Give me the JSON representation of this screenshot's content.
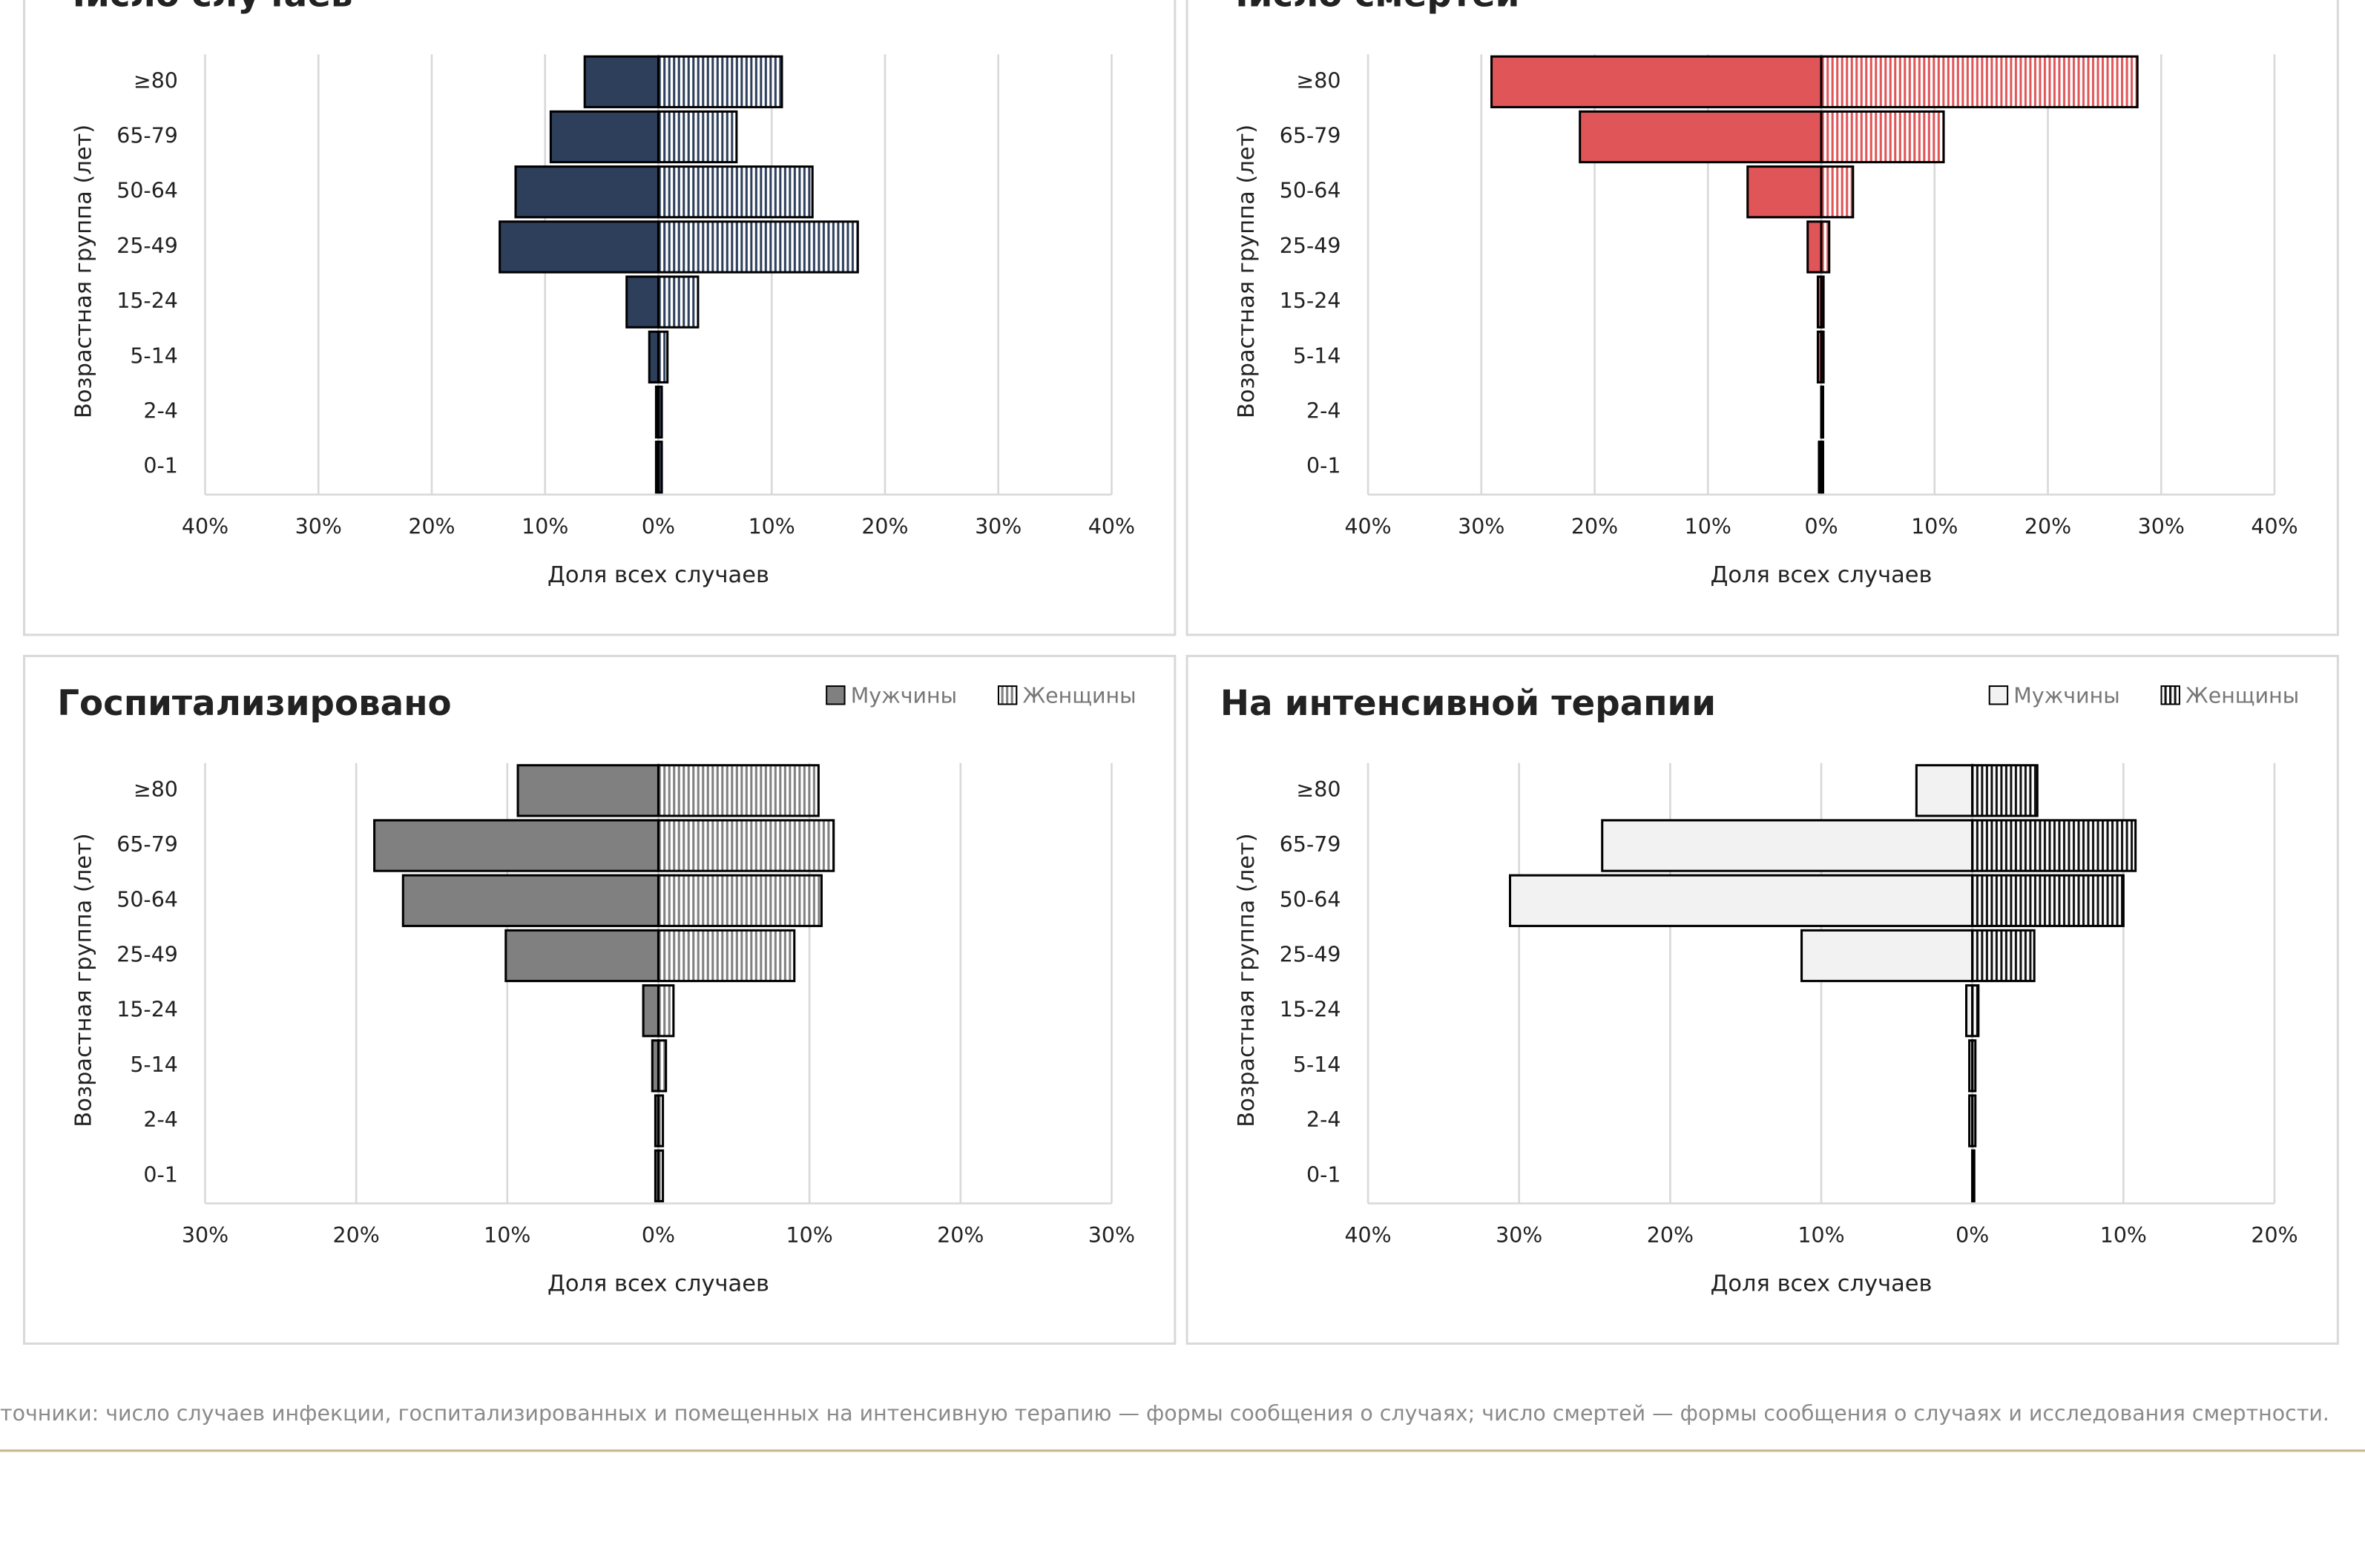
{
  "chart_data": [
    {
      "type": "bar",
      "orientation": "horizontal",
      "layout": "pyramid",
      "title": "Число случаев",
      "x_label": "Доля всех случаев",
      "y_label": "Возрастная группа (лет)",
      "categories": [
        "≥80",
        "65-79",
        "50-64",
        "25-49",
        "15-24",
        "5-14",
        "2-4",
        "0-1"
      ],
      "series": [
        {
          "color": "#2e3f5c",
          "pattern": "solid",
          "values": [
            -6.5,
            -9.5,
            -12.6,
            -14,
            -2.8,
            -0.8,
            -0.2,
            -0.2
          ]
        },
        {
          "color": "#2e3f5c",
          "pattern": "vertical-lines",
          "values": [
            10.9,
            6.9,
            13.6,
            17.6,
            3.5,
            0.8,
            0.3,
            0.3
          ]
        }
      ],
      "xlim": [
        -40,
        40
      ],
      "xticks": [
        {
          "value": -40,
          "label": "40%"
        },
        {
          "value": -30,
          "label": "30%"
        },
        {
          "value": -20,
          "label": "20%"
        },
        {
          "value": -10,
          "label": "10%"
        },
        {
          "value": 0,
          "label": "0%"
        },
        {
          "value": 10,
          "label": "10%"
        },
        {
          "value": 20,
          "label": "20%"
        },
        {
          "value": 30,
          "label": "30%"
        },
        {
          "value": 40,
          "label": "40%"
        }
      ],
      "grid": true,
      "legend": "none"
    },
    {
      "type": "bar",
      "orientation": "horizontal",
      "layout": "pyramid",
      "title": "Число смертей",
      "x_label": "Доля всех случаев",
      "y_label": "Возрастная группа (лет)",
      "categories": [
        "≥80",
        "65-79",
        "50-64",
        "25-49",
        "15-24",
        "5-14",
        "2-4",
        "0-1"
      ],
      "series": [
        {
          "color": "#e05558",
          "pattern": "solid",
          "values": [
            -29.1,
            -21.3,
            -6.5,
            -1.2,
            -0.3,
            -0.3,
            0,
            -0.2
          ]
        },
        {
          "color": "#e05558",
          "pattern": "vertical-lines",
          "values": [
            27.9,
            10.8,
            2.8,
            0.7,
            0.2,
            0.2,
            0.1,
            0.1
          ]
        }
      ],
      "xlim": [
        -40,
        40
      ],
      "xticks": [
        {
          "value": -40,
          "label": "40%"
        },
        {
          "value": -30,
          "label": "30%"
        },
        {
          "value": -20,
          "label": "20%"
        },
        {
          "value": -10,
          "label": "10%"
        },
        {
          "value": 0,
          "label": "0%"
        },
        {
          "value": 10,
          "label": "10%"
        },
        {
          "value": 20,
          "label": "20%"
        },
        {
          "value": 30,
          "label": "30%"
        },
        {
          "value": 40,
          "label": "40%"
        }
      ],
      "grid": true,
      "legend": "none"
    },
    {
      "type": "bar",
      "orientation": "horizontal",
      "layout": "pyramid",
      "title": "Госпитализировано",
      "x_label": "Доля всех случаев",
      "y_label": "Возрастная группа (лет)",
      "categories": [
        "≥80",
        "65-79",
        "50-64",
        "25-49",
        "15-24",
        "5-14",
        "2-4",
        "0-1"
      ],
      "series": [
        {
          "name": "Мужчины",
          "color": "#808080",
          "pattern": "solid",
          "values": [
            -9.3,
            -18.8,
            -16.9,
            -10.1,
            -1,
            -0.4,
            -0.2,
            -0.2
          ]
        },
        {
          "name": "Женщины",
          "color": "#808080",
          "pattern": "vertical-lines",
          "values": [
            10.6,
            11.6,
            10.8,
            9,
            1,
            0.5,
            0.3,
            0.3
          ]
        }
      ],
      "xlim": [
        -30,
        30
      ],
      "xticks": [
        {
          "value": -30,
          "label": "30%"
        },
        {
          "value": -20,
          "label": "20%"
        },
        {
          "value": -10,
          "label": "10%"
        },
        {
          "value": 0,
          "label": "0%"
        },
        {
          "value": 10,
          "label": "10%"
        },
        {
          "value": 20,
          "label": "20%"
        },
        {
          "value": 30,
          "label": "30%"
        }
      ],
      "grid": true,
      "legend": "top-right"
    },
    {
      "type": "bar",
      "orientation": "horizontal",
      "layout": "pyramid",
      "title": "На интенсивной терапии",
      "x_label": "Доля всех случаев",
      "y_label": "Возрастная группа (лет)",
      "categories": [
        "≥80",
        "65-79",
        "50-64",
        "25-49",
        "15-24",
        "5-14",
        "2-4",
        "0-1"
      ],
      "series": [
        {
          "name": "Мужчины",
          "color": "#f2f2f2",
          "pattern": "solid",
          "values": [
            -3.7,
            -24.5,
            -30.6,
            -11.3,
            -0.4,
            -0.2,
            -0.2,
            0
          ]
        },
        {
          "name": "Женщины",
          "color": "#111111",
          "pattern": "vertical-lines",
          "values": [
            4.3,
            10.8,
            10,
            4.1,
            0.4,
            0.2,
            0.2,
            0
          ]
        }
      ],
      "xlim": [
        -40,
        20
      ],
      "xticks": [
        {
          "value": -40,
          "label": "40%"
        },
        {
          "value": -30,
          "label": "30%"
        },
        {
          "value": -20,
          "label": "20%"
        },
        {
          "value": -10,
          "label": "10%"
        },
        {
          "value": 0,
          "label": "0%"
        },
        {
          "value": 10,
          "label": "10%"
        },
        {
          "value": 20,
          "label": "20%"
        }
      ],
      "grid": true,
      "legend": "top-right"
    }
  ],
  "source_note": "точники: число случаев инфекции, госпитализированных и помещенных на интенсивную терапию — формы сообщения о случаях; число смертей — формы сообщения о случаях и исследования смертности."
}
